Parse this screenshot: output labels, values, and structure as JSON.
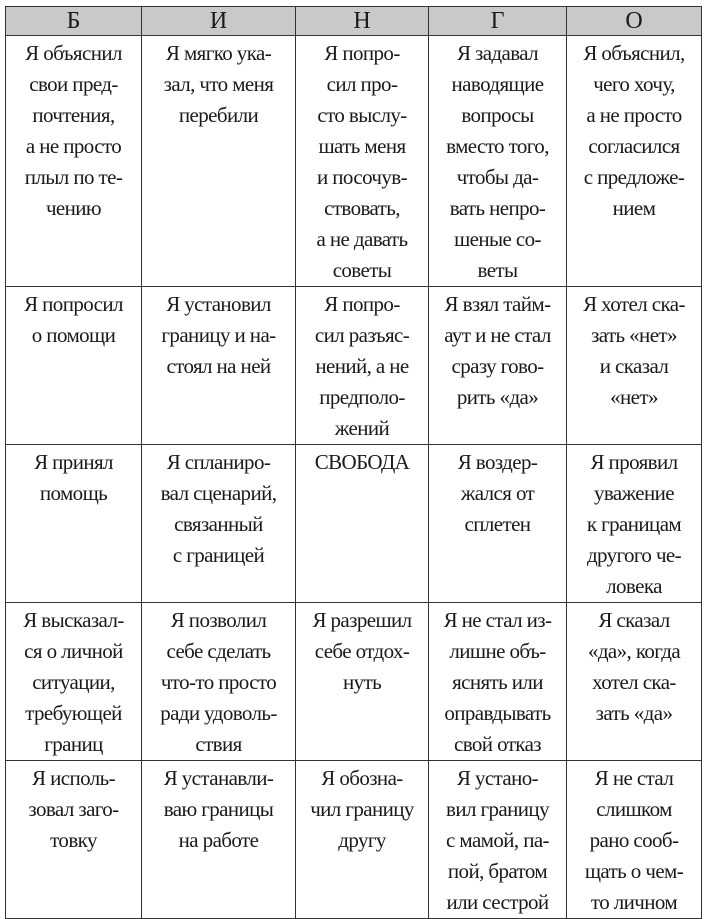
{
  "header": [
    "Б",
    "И",
    "Н",
    "Г",
    "О"
  ],
  "rows": [
    [
      "Я объяснил\nсвои пред-\nпочтения,\nа не просто\nплыл по те-\nчению",
      "Я мягко ука-\nзал, что меня\nперебили",
      "Я попро-\nсил про-\nсто выслу-\nшать меня\nи посочув-\nствовать,\nа не давать\nсоветы",
      "Я задавал\nнаводящие\nвопросы\nвместо того,\nчтобы да-\nвать непро-\nшеные со-\nветы",
      "Я объяснил,\nчего хочу,\nа не просто\nсогласился\nс предложе-\nнием"
    ],
    [
      "Я попросил\nо помощи",
      "Я установил\nграницу и на-\nстоял на ней",
      "Я попро-\nсил разъяс-\nнений, а не\nпредполо-\nжений",
      "Я взял тайм-\nаут и не стал\nсразу гово-\nрить «да»",
      "Я хотел ска-\nзать «нет»\nи сказал\n«нет»"
    ],
    [
      "Я принял\nпомощь",
      "Я сплaниро-\nвал сценарий,\nсвязанный\nс границей",
      "СВОБОДА",
      "Я воздер-\nжался от\nсплетен",
      "Я проявил\nуважение\nк границам\nдругого че-\nловека"
    ],
    [
      "Я высказал-\nся о личной\nситуации,\nтребующей\nграниц",
      "Я позволил\nсебе сделать\nчто-то просто\nради удоволь-\nствия",
      "Я разрешил\nсебе отдох-\nнуть",
      "Я не стал из-\nлишне объ-\nяснять или\nоправдывать\nсвой отказ",
      "Я сказал\n«да», когда\nхотел ска-\nзать «да»"
    ],
    [
      "Я исполь-\nзовал заго-\nтовку",
      "Я устанавли-\nваю границы\nна работе",
      "Я обозна-\nчил границу\nдругу",
      "Я устано-\nвил границу\nс мамой, па-\nпой, братом\nили сестрой",
      "Я не стал\nслишком\nрано сооб-\nщать о чем-\nто личном"
    ]
  ]
}
